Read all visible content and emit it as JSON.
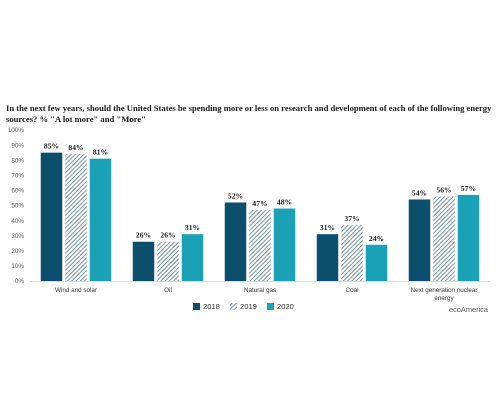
{
  "source": "ecoAmerica",
  "colors": {
    "s2018": "#0b4f6c",
    "s2019": "#5b7f8a",
    "s2020": "#1aa1b6"
  },
  "chart_data": {
    "type": "bar",
    "title": "In the next few years, should the United States be spending more or less on research and development of each of the following energy sources? % \"A lot more\" and \"More\"",
    "categories": [
      "Wind and solar",
      "Oil",
      "Natural gas",
      "Coal",
      "Next generation nuclear energy"
    ],
    "series": [
      {
        "name": "2018",
        "values": [
          85,
          26,
          52,
          31,
          54
        ],
        "pattern": "solid"
      },
      {
        "name": "2019",
        "values": [
          84,
          26,
          47,
          37,
          56
        ],
        "pattern": "hatched"
      },
      {
        "name": "2020",
        "values": [
          81,
          31,
          48,
          24,
          57
        ],
        "pattern": "solid"
      }
    ],
    "ylim": [
      0,
      100
    ],
    "yticks": [
      "0%",
      "10%",
      "20%",
      "30%",
      "40%",
      "50%",
      "60%",
      "70%",
      "80%",
      "90%",
      "100%"
    ],
    "data_label_suffix": "%",
    "legend_position": "bottom-center",
    "grid": false
  }
}
